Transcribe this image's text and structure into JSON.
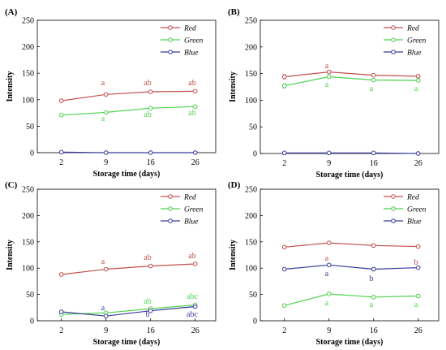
{
  "colors": {
    "Red": "#c0504d",
    "Green": "#4fd24f",
    "Blue": "#3a3a9a"
  },
  "chart_data": [
    {
      "type": "line",
      "panel": "(A)",
      "legend": "top-right",
      "x": [
        2,
        9,
        16,
        26
      ],
      "x_ticks": [
        "2",
        "9",
        "16",
        "26"
      ],
      "xlabel": "Storage time (days)",
      "ylabel": "Intensity",
      "ylim": [
        0,
        250
      ],
      "y_ticks": [
        0,
        50,
        100,
        150,
        200,
        250
      ],
      "series": [
        {
          "name": "Red",
          "values": [
            98,
            110,
            115,
            116
          ],
          "errors": [
            2,
            2,
            2,
            2
          ],
          "labels": [
            "",
            "a",
            "ab",
            "ab"
          ]
        },
        {
          "name": "Green",
          "values": [
            71,
            76,
            84,
            87
          ],
          "errors": [
            2,
            2,
            2,
            2
          ],
          "labels": [
            "",
            "a",
            "ab",
            "ab"
          ]
        },
        {
          "name": "Blue",
          "values": [
            1,
            0,
            0,
            0
          ],
          "errors": [
            0,
            0,
            0,
            0
          ],
          "labels": [
            "",
            "",
            "",
            ""
          ]
        }
      ]
    },
    {
      "type": "line",
      "panel": "(B)",
      "legend": "top-right",
      "x": [
        2,
        9,
        16,
        26
      ],
      "x_ticks": [
        "2",
        "9",
        "16",
        "26"
      ],
      "xlabel": "Storage time (days)",
      "ylabel": "Intensity",
      "ylim": [
        0,
        250
      ],
      "y_ticks": [
        0,
        50,
        100,
        150,
        200,
        250
      ],
      "series": [
        {
          "name": "Red",
          "values": [
            144,
            153,
            147,
            145
          ],
          "errors": [
            4,
            3,
            3,
            3
          ],
          "labels": [
            "",
            "a",
            "",
            ""
          ]
        },
        {
          "name": "Green",
          "values": [
            127,
            144,
            138,
            137
          ],
          "errors": [
            4,
            3,
            3,
            3
          ],
          "labels": [
            "",
            "a",
            "a",
            "a"
          ]
        },
        {
          "name": "Blue",
          "values": [
            1,
            1,
            1,
            0
          ],
          "errors": [
            0,
            0,
            0,
            0
          ],
          "labels": [
            "",
            "",
            "",
            ""
          ]
        }
      ]
    },
    {
      "type": "line",
      "panel": "(C)",
      "legend": "top-right",
      "x": [
        2,
        9,
        16,
        26
      ],
      "x_ticks": [
        "2",
        "9",
        "16",
        "26"
      ],
      "xlabel": "Storage time (days)",
      "ylabel": "Intensity",
      "ylim": [
        0,
        250
      ],
      "y_ticks": [
        0,
        50,
        100,
        150,
        200,
        250
      ],
      "series": [
        {
          "name": "Red",
          "values": [
            88,
            98,
            104,
            108
          ],
          "errors": [
            1,
            1,
            1,
            1
          ],
          "labels": [
            "",
            "a",
            "ab",
            "ab"
          ]
        },
        {
          "name": "Green",
          "values": [
            12,
            15,
            23,
            30
          ],
          "errors": [
            1,
            1,
            1,
            1
          ],
          "labels": [
            "",
            "",
            "ab",
            "abc"
          ]
        },
        {
          "name": "Blue",
          "values": [
            17,
            9,
            19,
            27
          ],
          "errors": [
            1,
            1,
            1,
            1
          ],
          "labels": [
            "",
            "a",
            "b",
            "abc"
          ]
        }
      ]
    },
    {
      "type": "line",
      "panel": "(D)",
      "legend": "top-right",
      "x": [
        2,
        9,
        16,
        26
      ],
      "x_ticks": [
        "2",
        "9",
        "16",
        "26"
      ],
      "xlabel": "Storage time (days)",
      "ylabel": "Intensity",
      "ylim": [
        0,
        250
      ],
      "y_ticks": [
        0,
        50,
        100,
        150,
        200,
        250
      ],
      "series": [
        {
          "name": "Red",
          "values": [
            140,
            148,
            143,
            141
          ],
          "errors": [
            2,
            2,
            3,
            2
          ],
          "labels": [
            "",
            "a",
            "",
            "b"
          ]
        },
        {
          "name": "Green",
          "values": [
            29,
            51,
            45,
            47
          ],
          "errors": [
            2,
            3,
            3,
            3
          ],
          "labels": [
            "",
            "a",
            "a",
            "a"
          ]
        },
        {
          "name": "Blue",
          "values": [
            98,
            106,
            98,
            101
          ],
          "errors": [
            2,
            2,
            3,
            2
          ],
          "labels": [
            "",
            "a",
            "b",
            ""
          ]
        }
      ]
    }
  ]
}
